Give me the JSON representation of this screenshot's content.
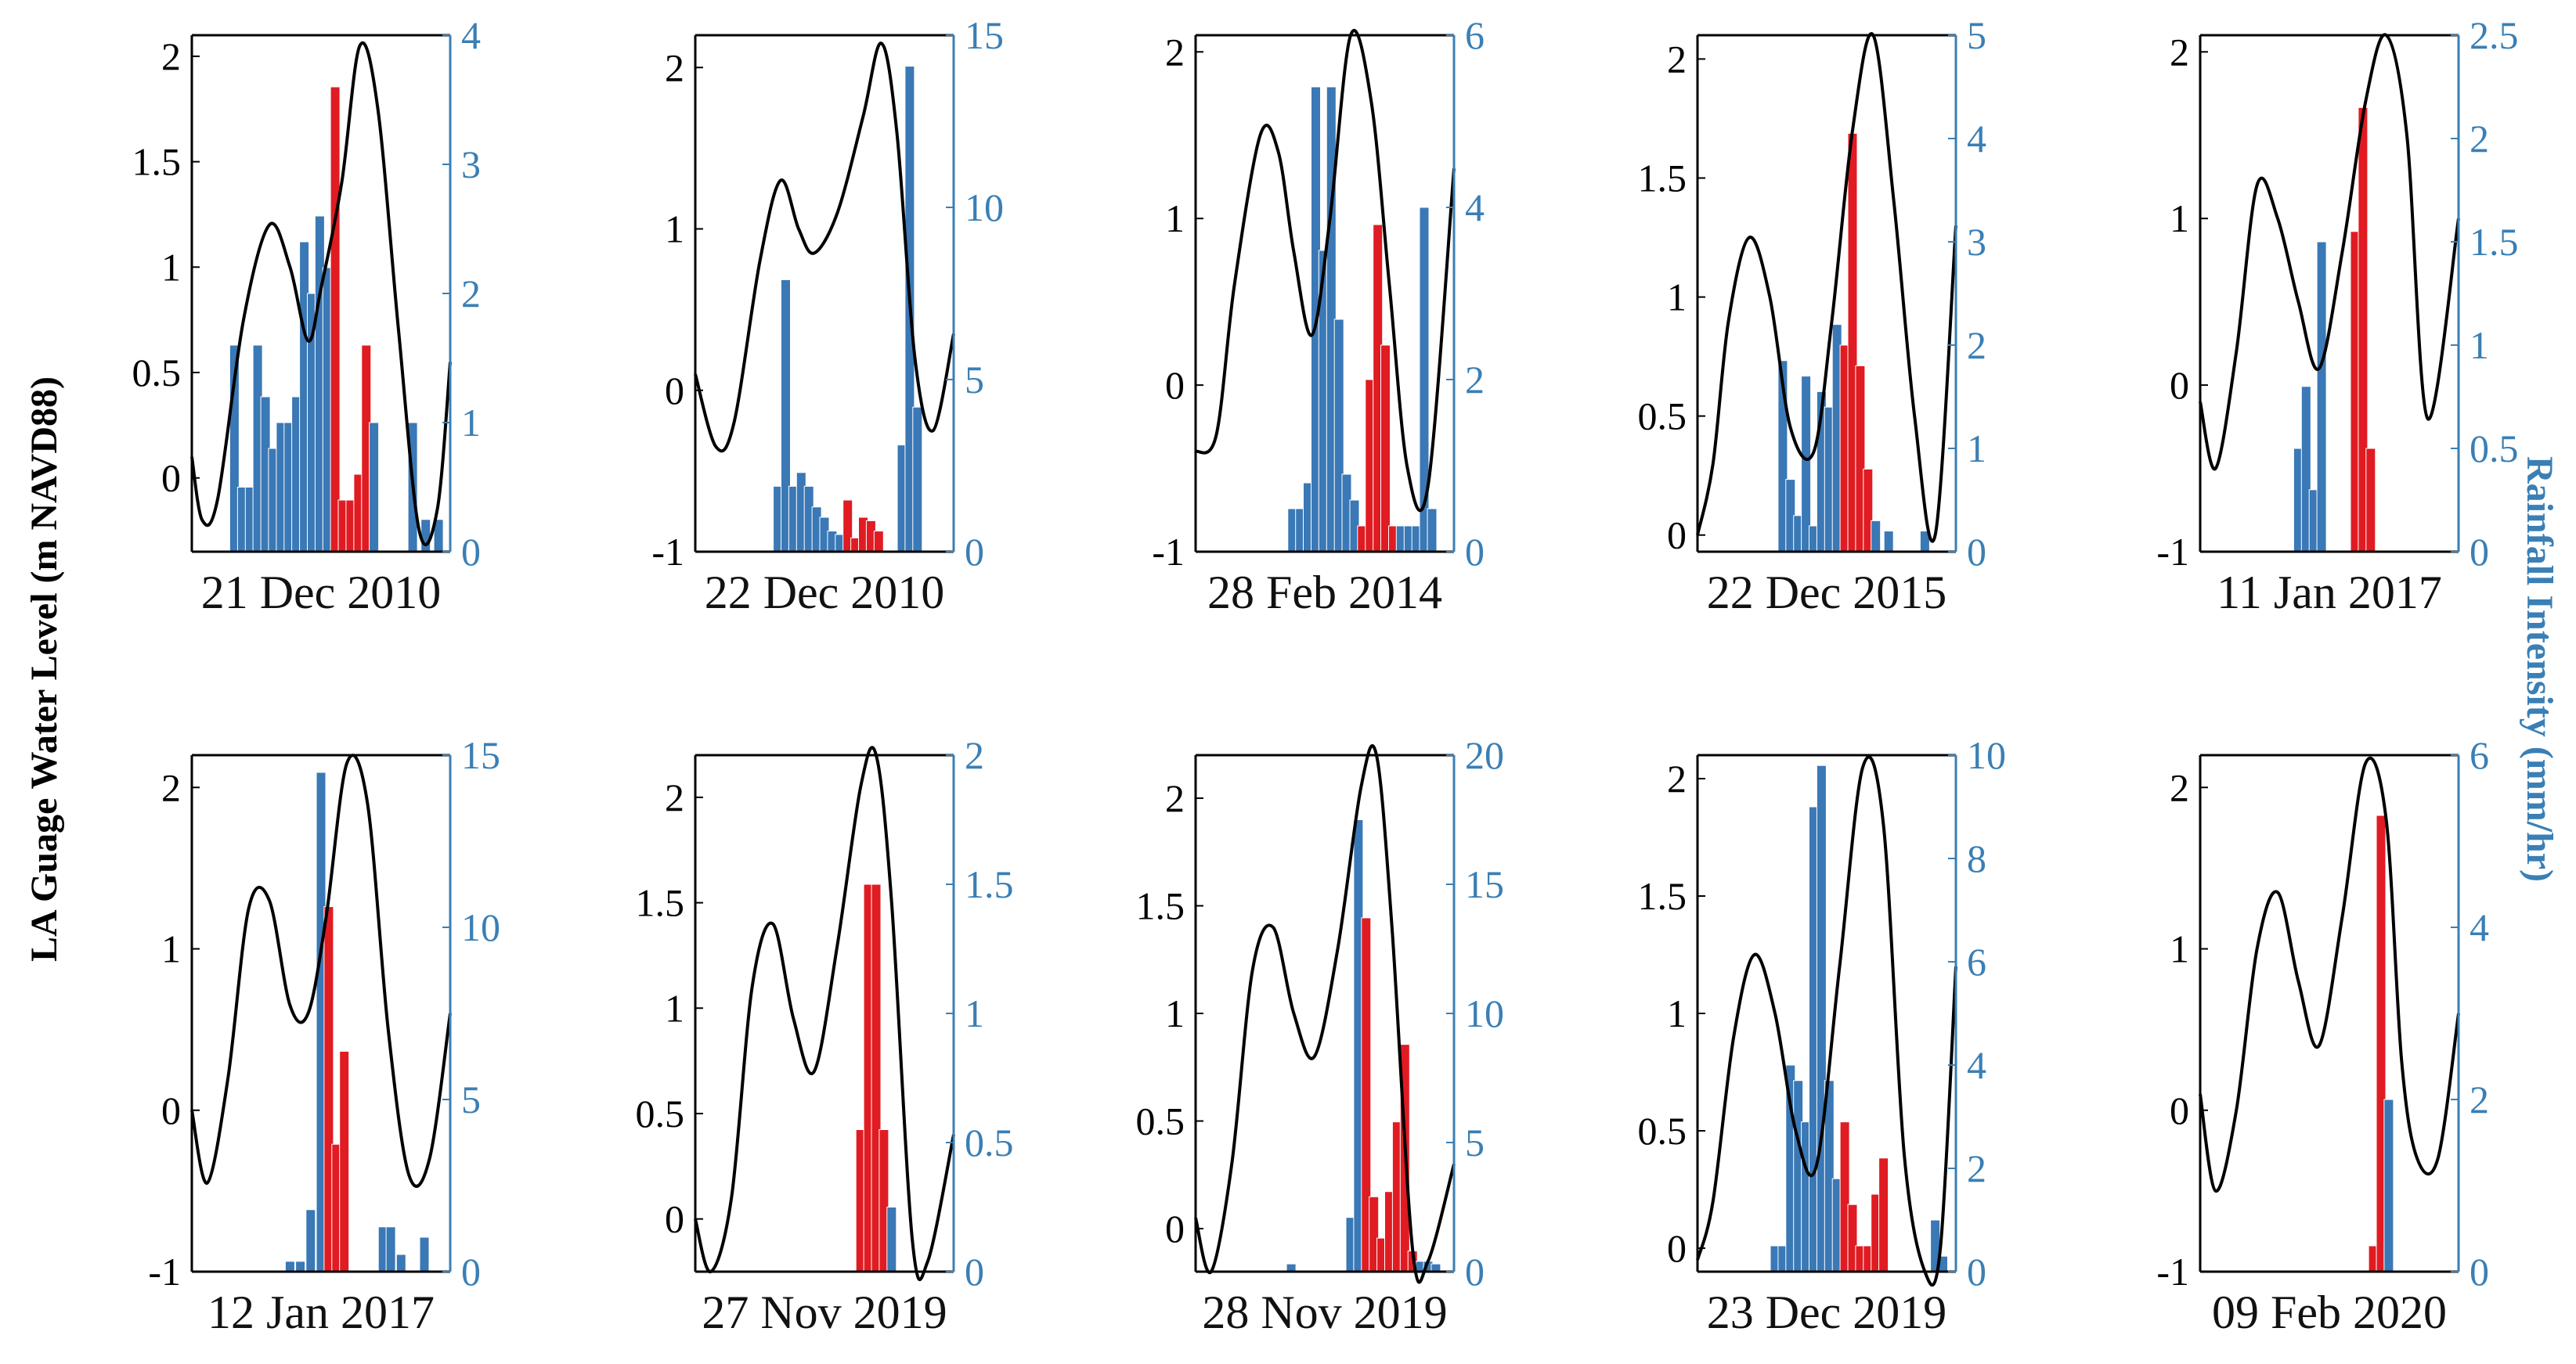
{
  "figure": {
    "left_ylabel": "LA Guage Water Level (m NAVD88)",
    "right_ylabel": "Rainfall Intensity (mm/hr)",
    "colors": {
      "water": "#000000",
      "rain_before": "#3a78b6",
      "rain_after": "#e11b22",
      "right_axis": "#3a7fb5"
    }
  },
  "chart_data": [
    {
      "type": "bar+line",
      "title": "21 Dec 2010",
      "left_ylim": [
        -0.35,
        2.1
      ],
      "left_ticks": [
        0,
        0.5,
        1,
        1.5,
        2
      ],
      "left_tick_labels": [
        "0",
        "0.5",
        "1",
        "1.5",
        "2"
      ],
      "right_ylim": [
        0,
        4
      ],
      "right_ticks": [
        0,
        1,
        2,
        3,
        4
      ],
      "right_tick_labels": [
        "0",
        "1",
        "2",
        "3",
        "4"
      ],
      "water_level": {
        "x": [
          0,
          0.04,
          0.1,
          0.2,
          0.3,
          0.38,
          0.45,
          0.5,
          0.58,
          0.65,
          0.72,
          0.8,
          0.88,
          0.95,
          1.0
        ],
        "y": [
          0.1,
          -0.2,
          -0.1,
          0.75,
          1.2,
          1.0,
          0.65,
          0.9,
          1.4,
          2.05,
          1.75,
          0.7,
          -0.25,
          -0.15,
          0.55
        ]
      },
      "rain_before": {
        "x": [
          0.165,
          0.195,
          0.225,
          0.255,
          0.285,
          0.315,
          0.345,
          0.375,
          0.405,
          0.435,
          0.465,
          0.495,
          0.525
        ],
        "y": [
          1.6,
          0.5,
          0.5,
          1.6,
          1.2,
          0.8,
          1.0,
          1.0,
          1.2,
          2.4,
          2.0,
          2.6,
          2.2
        ]
      },
      "rain_after": {
        "x": [
          0.555,
          0.585,
          0.615,
          0.645,
          0.675
        ],
        "y": [
          3.6,
          0.4,
          0.4,
          0.6,
          1.6
        ]
      },
      "rain_tail": {
        "x": [
          0.705,
          0.855,
          0.905,
          0.955
        ],
        "y": [
          1.0,
          1.0,
          0.25,
          0.25
        ]
      }
    },
    {
      "type": "bar+line",
      "title": "22 Dec 2010",
      "left_ylim": [
        -1,
        2.2
      ],
      "left_ticks": [
        -1,
        0,
        1,
        2
      ],
      "left_tick_labels": [
        "-1",
        "0",
        "1",
        "2"
      ],
      "right_ylim": [
        0,
        15
      ],
      "right_ticks": [
        0,
        5,
        10,
        15
      ],
      "right_tick_labels": [
        "0",
        "5",
        "10",
        "15"
      ],
      "water_level": {
        "x": [
          0,
          0.08,
          0.15,
          0.25,
          0.33,
          0.4,
          0.46,
          0.55,
          0.65,
          0.72,
          0.78,
          0.85,
          0.92,
          1.0
        ],
        "y": [
          0.1,
          -0.35,
          -0.2,
          0.8,
          1.3,
          1.0,
          0.85,
          1.1,
          1.7,
          2.15,
          1.6,
          0.2,
          -0.25,
          0.35
        ]
      },
      "rain_before": {
        "x": [
          0.32,
          0.35,
          0.38,
          0.41,
          0.44,
          0.47,
          0.5,
          0.53,
          0.56
        ],
        "y": [
          1.9,
          7.9,
          1.9,
          2.3,
          1.9,
          1.3,
          1.0,
          0.6,
          0.5
        ]
      },
      "rain_after": {
        "x": [
          0.59,
          0.62,
          0.65,
          0.68,
          0.71
        ],
        "y": [
          1.5,
          0.4,
          1.0,
          0.9,
          0.6
        ]
      },
      "rain_tail": {
        "x": [
          0.8,
          0.83,
          0.86
        ],
        "y": [
          3.1,
          14.1,
          4.2
        ]
      }
    },
    {
      "type": "bar+line",
      "title": "28 Feb 2014",
      "left_ylim": [
        -1,
        2.1
      ],
      "left_ticks": [
        -1,
        0,
        1,
        2
      ],
      "left_tick_labels": [
        "-1",
        "0",
        "1",
        "2"
      ],
      "right_ylim": [
        0,
        6
      ],
      "right_ticks": [
        0,
        2,
        4,
        6
      ],
      "right_tick_labels": [
        "0",
        "2",
        "4",
        "6"
      ],
      "water_level": {
        "x": [
          0,
          0.08,
          0.15,
          0.25,
          0.32,
          0.38,
          0.45,
          0.52,
          0.6,
          0.68,
          0.75,
          0.82,
          0.9,
          1.0
        ],
        "y": [
          -0.4,
          -0.3,
          0.6,
          1.5,
          1.4,
          0.8,
          0.3,
          1.0,
          2.1,
          1.7,
          0.6,
          -0.5,
          -0.6,
          1.3
        ]
      },
      "rain_before": {
        "x": [
          0.375,
          0.405,
          0.435,
          0.465,
          0.495,
          0.525,
          0.555,
          0.585,
          0.615
        ],
        "y": [
          0.5,
          0.5,
          0.8,
          5.4,
          3.5,
          5.4,
          2.7,
          0.9,
          0.6
        ]
      },
      "rain_after": {
        "x": [
          0.645,
          0.675,
          0.705,
          0.735,
          0.765
        ],
        "y": [
          0.3,
          2.0,
          3.8,
          2.4,
          0.3
        ]
      },
      "rain_tail": {
        "x": [
          0.795,
          0.825,
          0.855,
          0.885,
          0.915
        ],
        "y": [
          0.3,
          0.3,
          0.3,
          4.0,
          0.5
        ]
      }
    },
    {
      "type": "bar+line",
      "title": "22 Dec 2015",
      "left_ylim": [
        -0.07,
        2.1
      ],
      "left_ticks": [
        0,
        0.5,
        1,
        1.5,
        2
      ],
      "left_tick_labels": [
        "0",
        "0.5",
        "1",
        "1.5",
        "2"
      ],
      "right_ylim": [
        0,
        5
      ],
      "right_ticks": [
        0,
        1,
        2,
        3,
        4,
        5
      ],
      "right_tick_labels": [
        "0",
        "1",
        "2",
        "3",
        "4",
        "5"
      ],
      "water_level": {
        "x": [
          0,
          0.06,
          0.12,
          0.2,
          0.28,
          0.36,
          0.45,
          0.52,
          0.6,
          0.68,
          0.76,
          0.84,
          0.92,
          1.0
        ],
        "y": [
          0.0,
          0.3,
          0.9,
          1.25,
          1.0,
          0.45,
          0.35,
          0.9,
          1.7,
          2.1,
          1.4,
          0.5,
          0.0,
          1.3
        ]
      },
      "rain_before": {
        "x": [
          0.33,
          0.36,
          0.39,
          0.42,
          0.45,
          0.48,
          0.51,
          0.54
        ],
        "y": [
          1.85,
          0.7,
          0.35,
          1.7,
          0.25,
          1.55,
          1.4,
          2.2
        ]
      },
      "rain_after": {
        "x": [
          0.57,
          0.6,
          0.63,
          0.66
        ],
        "y": [
          2.0,
          4.05,
          1.8,
          0.8
        ]
      },
      "rain_tail": {
        "x": [
          0.69,
          0.74,
          0.88
        ],
        "y": [
          0.3,
          0.2,
          0.2
        ]
      }
    },
    {
      "type": "bar+line",
      "title": "11 Jan 2017",
      "left_ylim": [
        -1,
        2.1
      ],
      "left_ticks": [
        -1,
        0,
        1,
        2
      ],
      "left_tick_labels": [
        "-1",
        "0",
        "1",
        "2"
      ],
      "right_ylim": [
        0,
        2.5
      ],
      "right_ticks": [
        0,
        0.5,
        1,
        1.5,
        2,
        2.5
      ],
      "right_tick_labels": [
        "0",
        "0.5",
        "1",
        "1.5",
        "2",
        "2.5"
      ],
      "water_level": {
        "x": [
          0,
          0.06,
          0.14,
          0.22,
          0.3,
          0.38,
          0.46,
          0.55,
          0.64,
          0.72,
          0.8,
          0.88,
          1.0
        ],
        "y": [
          -0.1,
          -0.5,
          0.2,
          1.2,
          1.0,
          0.5,
          0.1,
          0.8,
          1.7,
          2.1,
          1.5,
          -0.2,
          1.0
        ]
      },
      "rain_before": {
        "x": [
          0.38,
          0.41,
          0.44,
          0.47
        ],
        "y": [
          0.5,
          0.8,
          0.3,
          1.5
        ]
      },
      "rain_after": {
        "x": [
          0.6,
          0.63,
          0.66
        ],
        "y": [
          1.55,
          2.15,
          0.5
        ]
      },
      "rain_tail": {
        "x": [],
        "y": []
      }
    },
    {
      "type": "bar+line",
      "title": "12 Jan 2017",
      "left_ylim": [
        -1,
        2.2
      ],
      "left_ticks": [
        -1,
        0,
        1,
        2
      ],
      "left_tick_labels": [
        "-1",
        "0",
        "1",
        "2"
      ],
      "right_ylim": [
        0,
        15
      ],
      "right_ticks": [
        0,
        5,
        10,
        15
      ],
      "right_tick_labels": [
        "0",
        "5",
        "10",
        "15"
      ],
      "water_level": {
        "x": [
          0,
          0.06,
          0.14,
          0.22,
          0.3,
          0.38,
          0.45,
          0.52,
          0.6,
          0.68,
          0.76,
          0.84,
          0.92,
          1.0
        ],
        "y": [
          0.0,
          -0.45,
          0.2,
          1.25,
          1.3,
          0.65,
          0.6,
          1.2,
          2.15,
          1.9,
          0.5,
          -0.4,
          -0.3,
          0.6
        ]
      },
      "rain_before": {
        "x": [
          0.38,
          0.42,
          0.46,
          0.5
        ],
        "y": [
          0.3,
          0.3,
          1.8,
          14.5
        ]
      },
      "rain_after": {
        "x": [
          0.53,
          0.56,
          0.59
        ],
        "y": [
          10.6,
          3.7,
          6.4
        ]
      },
      "rain_tail": {
        "x": [
          0.74,
          0.77,
          0.81,
          0.9
        ],
        "y": [
          1.3,
          1.3,
          0.5,
          1.0
        ]
      }
    },
    {
      "type": "bar+line",
      "title": "27 Nov 2019",
      "left_ylim": [
        -0.25,
        2.2
      ],
      "left_ticks": [
        0,
        0.5,
        1,
        1.5,
        2
      ],
      "left_tick_labels": [
        "0",
        "0.5",
        "1",
        "1.5",
        "2"
      ],
      "right_ylim": [
        0,
        2
      ],
      "right_ticks": [
        0,
        0.5,
        1,
        1.5,
        2
      ],
      "right_tick_labels": [
        "0",
        "0.5",
        "1",
        "1.5",
        "2"
      ],
      "water_level": {
        "x": [
          0,
          0.06,
          0.14,
          0.22,
          0.3,
          0.38,
          0.46,
          0.55,
          0.64,
          0.7,
          0.76,
          0.84,
          0.9,
          1.0
        ],
        "y": [
          0.0,
          -0.25,
          0.1,
          1.1,
          1.4,
          0.95,
          0.7,
          1.3,
          2.05,
          2.2,
          1.5,
          -0.1,
          -0.2,
          0.4
        ]
      },
      "rain_before": {
        "x": [],
        "y": []
      },
      "rain_after": {
        "x": [
          0.64,
          0.67,
          0.7,
          0.73
        ],
        "y": [
          0.55,
          1.5,
          1.5,
          0.55
        ]
      },
      "rain_tail": {
        "x": [
          0.76
        ],
        "y": [
          0.25
        ]
      }
    },
    {
      "type": "bar+line",
      "title": "28 Nov 2019",
      "left_ylim": [
        -0.2,
        2.2
      ],
      "left_ticks": [
        0,
        0.5,
        1,
        1.5,
        2
      ],
      "left_tick_labels": [
        "0",
        "0.5",
        "1",
        "1.5",
        "2"
      ],
      "right_ylim": [
        0,
        20
      ],
      "right_ticks": [
        0,
        5,
        10,
        15,
        20
      ],
      "right_tick_labels": [
        "0",
        "5",
        "10",
        "15",
        "20"
      ],
      "water_level": {
        "x": [
          0,
          0.06,
          0.14,
          0.22,
          0.3,
          0.38,
          0.46,
          0.55,
          0.64,
          0.7,
          0.76,
          0.84,
          0.9,
          1.0
        ],
        "y": [
          0.05,
          -0.2,
          0.3,
          1.2,
          1.4,
          1.0,
          0.8,
          1.3,
          2.05,
          2.2,
          1.4,
          -0.1,
          -0.15,
          0.3
        ]
      },
      "rain_before": {
        "x": [
          0.37,
          0.6,
          0.63
        ],
        "y": [
          0.3,
          2.1,
          17.5
        ]
      },
      "rain_after": {
        "x": [
          0.66,
          0.69,
          0.72,
          0.75,
          0.78,
          0.81,
          0.84
        ],
        "y": [
          13.7,
          2.9,
          1.3,
          3.1,
          5.8,
          8.8,
          0.8
        ]
      },
      "rain_tail": {
        "x": [
          0.87,
          0.9,
          0.93
        ],
        "y": [
          0.4,
          0.4,
          0.3
        ]
      }
    },
    {
      "type": "bar+line",
      "title": "23 Dec 2019",
      "left_ylim": [
        -0.1,
        2.1
      ],
      "left_ticks": [
        0,
        0.5,
        1,
        1.5,
        2
      ],
      "left_tick_labels": [
        "0",
        "0.5",
        "1",
        "1.5",
        "2"
      ],
      "right_ylim": [
        0,
        10
      ],
      "right_ticks": [
        0,
        2,
        4,
        6,
        8,
        10
      ],
      "right_tick_labels": [
        "0",
        "2",
        "4",
        "6",
        "8",
        "10"
      ],
      "water_level": {
        "x": [
          0,
          0.06,
          0.14,
          0.22,
          0.3,
          0.38,
          0.46,
          0.55,
          0.64,
          0.72,
          0.8,
          0.88,
          0.94,
          1.0
        ],
        "y": [
          -0.05,
          0.2,
          0.9,
          1.25,
          1.0,
          0.5,
          0.35,
          1.2,
          2.05,
          1.8,
          0.4,
          -0.1,
          0.0,
          1.2
        ]
      },
      "rain_before": {
        "x": [
          0.3,
          0.33,
          0.36,
          0.39,
          0.42,
          0.45,
          0.48,
          0.51,
          0.54
        ],
        "y": [
          0.5,
          0.5,
          4.0,
          3.7,
          2.9,
          9.0,
          9.8,
          3.7,
          1.8
        ]
      },
      "rain_after": {
        "x": [
          0.57,
          0.6,
          0.63,
          0.66,
          0.69,
          0.72
        ],
        "y": [
          2.9,
          1.3,
          0.5,
          0.5,
          1.5,
          2.2
        ]
      },
      "rain_tail": {
        "x": [
          0.92,
          0.95
        ],
        "y": [
          1.0,
          0.3
        ]
      }
    },
    {
      "type": "bar+line",
      "title": "09 Feb 2020",
      "left_ylim": [
        -1,
        2.2
      ],
      "left_ticks": [
        -1,
        0,
        1,
        2
      ],
      "left_tick_labels": [
        "-1",
        "0",
        "1",
        "2"
      ],
      "right_ylim": [
        0,
        6
      ],
      "right_ticks": [
        0,
        2,
        4,
        6
      ],
      "right_tick_labels": [
        "0",
        "2",
        "4",
        "6"
      ],
      "water_level": {
        "x": [
          0,
          0.06,
          0.14,
          0.22,
          0.3,
          0.38,
          0.46,
          0.55,
          0.64,
          0.72,
          0.78,
          0.84,
          0.92,
          1.0
        ],
        "y": [
          0.1,
          -0.5,
          0.0,
          1.0,
          1.35,
          0.8,
          0.4,
          1.2,
          2.15,
          1.8,
          0.3,
          -0.3,
          -0.3,
          0.6
        ]
      },
      "rain_before": {
        "x": [],
        "y": []
      },
      "rain_after": {
        "x": [
          0.67,
          0.7
        ],
        "y": [
          0.3,
          5.3
        ]
      },
      "rain_tail": {
        "x": [
          0.73
        ],
        "y": [
          2.0
        ]
      }
    }
  ]
}
